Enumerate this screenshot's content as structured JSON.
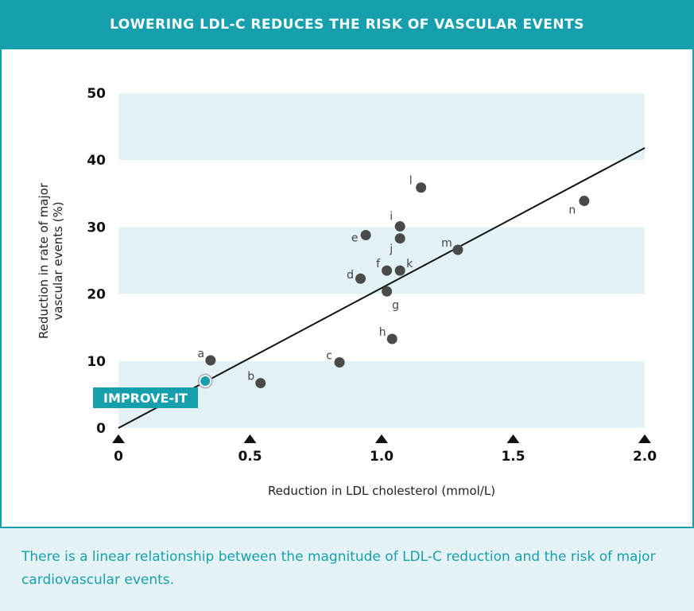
{
  "header": {
    "title": "LOWERING LDL-C REDUCES THE RISK OF VASCULAR EVENTS"
  },
  "caption": "There is a linear relationship between the magnitude of LDL-C reduction and the risk of major cardiovascular events.",
  "colors": {
    "accent": "#16a0ae",
    "band": "#e3f2f6",
    "point": "#4a4a4a",
    "highlight": "#16a0ae"
  },
  "chart_data": {
    "type": "scatter",
    "title": "",
    "xlabel": "Reduction in LDL cholesterol (mmol/L)",
    "ylabel": "Reduction in rate of major vascular events (%)",
    "ylabel_lines": [
      "Reduction in rate of major",
      "vascular events (%)"
    ],
    "xlim": [
      0,
      2.0
    ],
    "ylim": [
      0,
      50
    ],
    "x_ticks": [
      "0",
      "0.5",
      "1.0",
      "1.5",
      "2.0"
    ],
    "x_tick_values": [
      0,
      0.5,
      1.0,
      1.5,
      2.0
    ],
    "y_ticks": [
      "0",
      "10",
      "20",
      "30",
      "40",
      "50"
    ],
    "y_tick_values": [
      0,
      10,
      20,
      30,
      40,
      50
    ],
    "bands": [
      [
        0,
        10
      ],
      [
        20,
        30
      ],
      [
        40,
        50
      ]
    ],
    "points": [
      {
        "label": "a",
        "x": 0.35,
        "y": 10.1
      },
      {
        "label": "b",
        "x": 0.54,
        "y": 6.7
      },
      {
        "label": "c",
        "x": 0.84,
        "y": 9.8
      },
      {
        "label": "d",
        "x": 0.92,
        "y": 22.3
      },
      {
        "label": "e",
        "x": 0.94,
        "y": 28.8
      },
      {
        "label": "f",
        "x": 1.02,
        "y": 23.5
      },
      {
        "label": "g",
        "x": 1.02,
        "y": 20.4
      },
      {
        "label": "h",
        "x": 1.04,
        "y": 13.3
      },
      {
        "label": "i",
        "x": 1.07,
        "y": 30.1
      },
      {
        "label": "j",
        "x": 1.07,
        "y": 28.3
      },
      {
        "label": "k",
        "x": 1.07,
        "y": 23.5
      },
      {
        "label": "l",
        "x": 1.15,
        "y": 35.9
      },
      {
        "label": "m",
        "x": 1.29,
        "y": 26.6
      },
      {
        "label": "n",
        "x": 1.77,
        "y": 33.9
      }
    ],
    "highlight": {
      "label": "IMPROVE-IT",
      "x": 0.33,
      "y": 7.0
    },
    "trendline": {
      "x": [
        0,
        2.0
      ],
      "y": [
        0,
        41.8
      ]
    }
  }
}
